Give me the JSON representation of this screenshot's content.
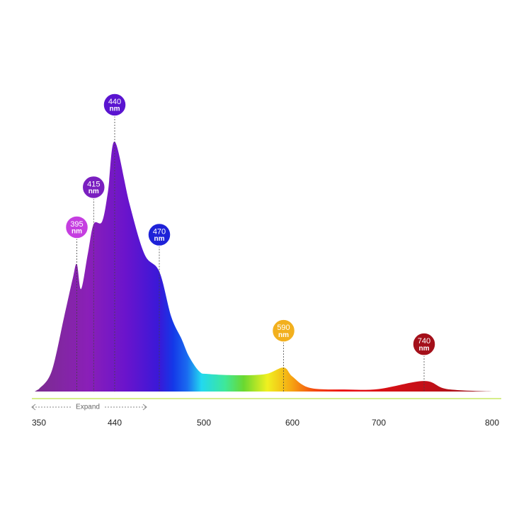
{
  "chart_data": {
    "type": "area",
    "x": [
      350,
      365,
      380,
      390,
      395,
      400,
      408,
      415,
      425,
      432,
      440,
      450,
      460,
      470,
      478,
      485,
      490,
      497,
      505,
      540,
      570,
      590,
      600,
      620,
      660,
      700,
      740,
      760,
      800
    ],
    "values": [
      1,
      8,
      30,
      45,
      51,
      41,
      55,
      67,
      68,
      80,
      100,
      75,
      55,
      48,
      30,
      21,
      14,
      8,
      7,
      6.5,
      7,
      9.6,
      6,
      1.5,
      0.8,
      1,
      4.2,
      1,
      0
    ],
    "xlim": [
      350,
      800
    ],
    "xticks": [
      350,
      440,
      500,
      600,
      700,
      800
    ],
    "ylim": [
      0,
      100
    ],
    "peak_unit": "nm",
    "peaks": [
      {
        "wavelength": 395,
        "color": "#c53ee0"
      },
      {
        "wavelength": 415,
        "color": "#7a1fc0"
      },
      {
        "wavelength": 440,
        "color": "#5a14d0"
      },
      {
        "wavelength": 470,
        "color": "#1e22d8"
      },
      {
        "wavelength": 590,
        "color": "#f2b01e"
      },
      {
        "wavelength": 740,
        "color": "#a4101a"
      }
    ],
    "expand_label": "Expand"
  }
}
